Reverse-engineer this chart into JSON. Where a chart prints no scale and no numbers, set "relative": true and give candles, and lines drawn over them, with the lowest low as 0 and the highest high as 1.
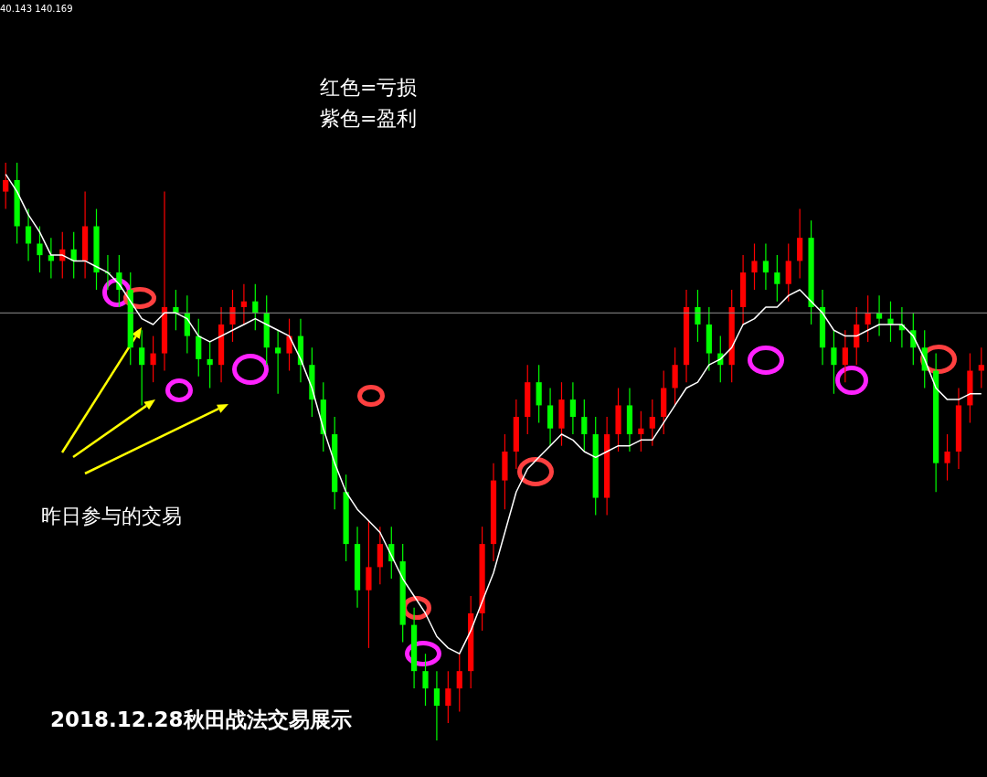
{
  "chart_data": {
    "type": "candlestick",
    "relative": true,
    "categories": [
      null,
      null,
      null,
      null,
      null,
      null,
      null,
      null,
      null,
      null,
      null,
      null,
      null,
      null,
      null,
      null,
      null,
      null,
      null,
      null,
      null,
      null,
      null,
      null,
      null,
      null,
      null,
      null,
      null,
      null,
      null,
      null,
      null,
      null,
      null,
      null,
      null,
      null,
      null,
      null,
      null,
      null,
      null,
      null,
      null,
      null,
      null,
      null,
      null,
      null,
      null,
      null,
      null,
      null,
      null,
      null,
      null,
      null,
      null,
      null,
      null,
      null,
      null,
      null,
      null,
      null,
      null,
      null,
      null,
      null,
      null,
      null,
      null,
      null,
      null,
      null,
      null,
      null,
      null,
      null,
      null,
      null,
      null,
      null,
      null,
      null,
      null
    ],
    "ohlc": [
      [
        0.95,
        1.0,
        0.92,
        0.97
      ],
      [
        0.97,
        1.0,
        0.86,
        0.89
      ],
      [
        0.89,
        0.92,
        0.83,
        0.86
      ],
      [
        0.86,
        0.89,
        0.81,
        0.84
      ],
      [
        0.84,
        0.87,
        0.8,
        0.83
      ],
      [
        0.83,
        0.88,
        0.8,
        0.85
      ],
      [
        0.85,
        0.88,
        0.8,
        0.83
      ],
      [
        0.83,
        0.95,
        0.8,
        0.89
      ],
      [
        0.89,
        0.92,
        0.78,
        0.81
      ],
      [
        0.81,
        0.84,
        0.78,
        0.81
      ],
      [
        0.81,
        0.84,
        0.75,
        0.78
      ],
      [
        0.78,
        0.81,
        0.65,
        0.68
      ],
      [
        0.68,
        0.71,
        0.58,
        0.65
      ],
      [
        0.65,
        0.7,
        0.62,
        0.67
      ],
      [
        0.67,
        0.95,
        0.64,
        0.75
      ],
      [
        0.75,
        0.78,
        0.71,
        0.74
      ],
      [
        0.74,
        0.77,
        0.67,
        0.7
      ],
      [
        0.7,
        0.73,
        0.63,
        0.66
      ],
      [
        0.66,
        0.69,
        0.61,
        0.65
      ],
      [
        0.65,
        0.75,
        0.62,
        0.72
      ],
      [
        0.72,
        0.78,
        0.69,
        0.75
      ],
      [
        0.75,
        0.79,
        0.72,
        0.76
      ],
      [
        0.76,
        0.79,
        0.71,
        0.74
      ],
      [
        0.74,
        0.77,
        0.65,
        0.68
      ],
      [
        0.68,
        0.71,
        0.6,
        0.67
      ],
      [
        0.67,
        0.73,
        0.64,
        0.7
      ],
      [
        0.7,
        0.73,
        0.62,
        0.65
      ],
      [
        0.65,
        0.68,
        0.56,
        0.59
      ],
      [
        0.59,
        0.62,
        0.5,
        0.53
      ],
      [
        0.53,
        0.56,
        0.4,
        0.43
      ],
      [
        0.43,
        0.46,
        0.31,
        0.34
      ],
      [
        0.34,
        0.37,
        0.23,
        0.26
      ],
      [
        0.26,
        0.38,
        0.16,
        0.3
      ],
      [
        0.3,
        0.37,
        0.27,
        0.34
      ],
      [
        0.34,
        0.37,
        0.28,
        0.31
      ],
      [
        0.31,
        0.34,
        0.17,
        0.2
      ],
      [
        0.2,
        0.23,
        0.09,
        0.12
      ],
      [
        0.12,
        0.15,
        0.06,
        0.09
      ],
      [
        0.09,
        0.12,
        0.0,
        0.06
      ],
      [
        0.06,
        0.12,
        0.03,
        0.09
      ],
      [
        0.09,
        0.15,
        0.05,
        0.12
      ],
      [
        0.12,
        0.25,
        0.09,
        0.22
      ],
      [
        0.22,
        0.37,
        0.19,
        0.34
      ],
      [
        0.34,
        0.48,
        0.31,
        0.45
      ],
      [
        0.45,
        0.53,
        0.4,
        0.5
      ],
      [
        0.5,
        0.59,
        0.47,
        0.56
      ],
      [
        0.56,
        0.65,
        0.53,
        0.62
      ],
      [
        0.62,
        0.65,
        0.55,
        0.58
      ],
      [
        0.58,
        0.61,
        0.51,
        0.54
      ],
      [
        0.54,
        0.62,
        0.51,
        0.59
      ],
      [
        0.59,
        0.62,
        0.53,
        0.56
      ],
      [
        0.56,
        0.59,
        0.5,
        0.53
      ],
      [
        0.53,
        0.56,
        0.39,
        0.42
      ],
      [
        0.42,
        0.56,
        0.39,
        0.53
      ],
      [
        0.53,
        0.61,
        0.5,
        0.58
      ],
      [
        0.58,
        0.61,
        0.5,
        0.53
      ],
      [
        0.53,
        0.57,
        0.5,
        0.54
      ],
      [
        0.54,
        0.59,
        0.51,
        0.56
      ],
      [
        0.56,
        0.64,
        0.53,
        0.61
      ],
      [
        0.61,
        0.68,
        0.58,
        0.65
      ],
      [
        0.65,
        0.78,
        0.62,
        0.75
      ],
      [
        0.75,
        0.78,
        0.69,
        0.72
      ],
      [
        0.72,
        0.75,
        0.64,
        0.67
      ],
      [
        0.67,
        0.7,
        0.62,
        0.65
      ],
      [
        0.65,
        0.78,
        0.62,
        0.75
      ],
      [
        0.75,
        0.84,
        0.72,
        0.81
      ],
      [
        0.81,
        0.86,
        0.78,
        0.83
      ],
      [
        0.83,
        0.86,
        0.78,
        0.81
      ],
      [
        0.81,
        0.84,
        0.76,
        0.79
      ],
      [
        0.79,
        0.86,
        0.76,
        0.83
      ],
      [
        0.83,
        0.92,
        0.8,
        0.87
      ],
      [
        0.87,
        0.9,
        0.72,
        0.75
      ],
      [
        0.75,
        0.78,
        0.65,
        0.68
      ],
      [
        0.68,
        0.71,
        0.6,
        0.65
      ],
      [
        0.65,
        0.71,
        0.62,
        0.68
      ],
      [
        0.68,
        0.75,
        0.65,
        0.72
      ],
      [
        0.72,
        0.77,
        0.69,
        0.74
      ],
      [
        0.74,
        0.77,
        0.7,
        0.73
      ],
      [
        0.73,
        0.76,
        0.69,
        0.72
      ],
      [
        0.72,
        0.75,
        0.68,
        0.71
      ],
      [
        0.71,
        0.74,
        0.65,
        0.68
      ],
      [
        0.68,
        0.71,
        0.61,
        0.64
      ],
      [
        0.64,
        0.67,
        0.43,
        0.48
      ],
      [
        0.48,
        0.53,
        0.45,
        0.5
      ],
      [
        0.5,
        0.61,
        0.47,
        0.58
      ],
      [
        0.58,
        0.67,
        0.55,
        0.64
      ],
      [
        0.64,
        0.68,
        0.61,
        0.65
      ]
    ],
    "colors": [
      "#ff0000",
      "#00ff00",
      "#00ff00",
      "#00ff00",
      "#00ff00",
      "#ff0000",
      "#00ff00",
      "#ff0000",
      "#00ff00",
      "#00ff00",
      "#00ff00",
      "#00ff00",
      "#00ff00",
      "#ff0000",
      "#ff0000",
      "#00ff00",
      "#00ff00",
      "#00ff00",
      "#00ff00",
      "#ff0000",
      "#ff0000",
      "#ff0000",
      "#00ff00",
      "#00ff00",
      "#00ff00",
      "#ff0000",
      "#00ff00",
      "#00ff00",
      "#00ff00",
      "#00ff00",
      "#00ff00",
      "#00ff00",
      "#ff0000",
      "#ff0000",
      "#00ff00",
      "#00ff00",
      "#00ff00",
      "#00ff00",
      "#00ff00",
      "#ff0000",
      "#ff0000",
      "#ff0000",
      "#ff0000",
      "#ff0000",
      "#ff0000",
      "#ff0000",
      "#ff0000",
      "#00ff00",
      "#00ff00",
      "#ff0000",
      "#00ff00",
      "#00ff00",
      "#00ff00",
      "#ff0000",
      "#ff0000",
      "#00ff00",
      "#ff0000",
      "#ff0000",
      "#ff0000",
      "#ff0000",
      "#ff0000",
      "#00ff00",
      "#00ff00",
      "#00ff00",
      "#ff0000",
      "#ff0000",
      "#ff0000",
      "#00ff00",
      "#00ff00",
      "#ff0000",
      "#ff0000",
      "#00ff00",
      "#00ff00",
      "#00ff00",
      "#ff0000",
      "#ff0000",
      "#ff0000",
      "#00ff00",
      "#00ff00",
      "#00ff00",
      "#00ff00",
      "#00ff00",
      "#00ff00",
      "#ff0000",
      "#ff0000",
      "#ff0000",
      "#ff0000"
    ],
    "series": [
      {
        "type": "line",
        "color": "#ffffff",
        "values": [
          0.98,
          0.95,
          0.91,
          0.88,
          0.84,
          0.84,
          0.83,
          0.83,
          0.82,
          0.81,
          0.79,
          0.76,
          0.73,
          0.72,
          0.74,
          0.74,
          0.73,
          0.7,
          0.69,
          0.7,
          0.71,
          0.72,
          0.73,
          0.72,
          0.71,
          0.7,
          0.66,
          0.61,
          0.54,
          0.48,
          0.43,
          0.4,
          0.38,
          0.36,
          0.32,
          0.28,
          0.25,
          0.22,
          0.18,
          0.16,
          0.15,
          0.19,
          0.24,
          0.29,
          0.36,
          0.43,
          0.47,
          0.49,
          0.51,
          0.53,
          0.52,
          0.5,
          0.49,
          0.5,
          0.51,
          0.51,
          0.52,
          0.52,
          0.55,
          0.58,
          0.61,
          0.62,
          0.65,
          0.66,
          0.68,
          0.72,
          0.73,
          0.75,
          0.75,
          0.77,
          0.78,
          0.76,
          0.74,
          0.71,
          0.7,
          0.7,
          0.71,
          0.72,
          0.72,
          0.72,
          0.7,
          0.66,
          0.61,
          0.59,
          0.59,
          0.6,
          0.6
        ]
      }
    ],
    "marker": "none",
    "ref_lines": [
      {
        "axis": "y",
        "value": 0.74,
        "color": "#909090"
      }
    ],
    "annotations": [
      "40.143 140.169",
      "红色=亏损",
      "紫色=盈利",
      "昨日参与的交易",
      "2018.12.28秋田战法交易展示"
    ],
    "grid": false,
    "legend": false,
    "tick_labels": false
  }
}
